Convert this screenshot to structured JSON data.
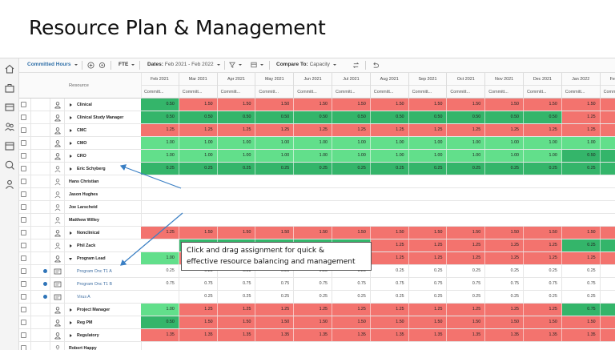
{
  "page_title": "Resource Plan & Management",
  "toolbar": {
    "measure": "Committed Hours",
    "unit": "FTE",
    "dates_label": "Dates:",
    "dates_value": "Feb 2021 - Feb 2022",
    "compare_label": "Compare To:",
    "compare_value": "Capacity"
  },
  "grid": {
    "resource_header": "Resource",
    "sub_header": "Committ...",
    "months": [
      "Feb 2021",
      "Mar 2021",
      "Apr 2021",
      "May 2021",
      "Jun 2021",
      "Jul 2021",
      "Aug 2021",
      "Sep 2021",
      "Oct 2021",
      "Nov 2021",
      "Dec 2021",
      "Jan 2022",
      "Feb 2022"
    ],
    "rows": [
      {
        "name": "Clinical",
        "kind": "group",
        "icon": "users-icon",
        "expand": "collapsed",
        "cells": [
          "0.50",
          "1.50",
          "1.50",
          "1.50",
          "1.50",
          "1.50",
          "1.50",
          "1.50",
          "1.50",
          "1.50",
          "1.50",
          "1.50",
          "1.50"
        ],
        "colors": [
          "dg",
          "red",
          "red",
          "red",
          "red",
          "red",
          "red",
          "red",
          "red",
          "red",
          "red",
          "red",
          "red"
        ]
      },
      {
        "name": "Clinical Study Manager",
        "kind": "group",
        "icon": "users-icon",
        "expand": "collapsed",
        "cells": [
          "0.50",
          "0.50",
          "0.50",
          "0.50",
          "0.50",
          "0.50",
          "0.50",
          "0.50",
          "0.50",
          "0.50",
          "0.50",
          "1.25",
          "1.25"
        ],
        "colors": [
          "dg",
          "dg",
          "dg",
          "dg",
          "dg",
          "dg",
          "dg",
          "dg",
          "dg",
          "dg",
          "dg",
          "red",
          "red"
        ]
      },
      {
        "name": "CMC",
        "kind": "group",
        "icon": "users-icon",
        "expand": "collapsed",
        "cells": [
          "1.25",
          "1.25",
          "1.25",
          "1.25",
          "1.25",
          "1.25",
          "1.25",
          "1.25",
          "1.25",
          "1.25",
          "1.25",
          "1.25",
          "1.25"
        ],
        "colors": [
          "red",
          "red",
          "red",
          "red",
          "red",
          "red",
          "red",
          "red",
          "red",
          "red",
          "red",
          "red",
          "red"
        ]
      },
      {
        "name": "CMO",
        "kind": "group",
        "icon": "users-icon",
        "expand": "collapsed",
        "cells": [
          "1.00",
          "1.00",
          "1.00",
          "1.00",
          "1.00",
          "1.00",
          "1.00",
          "1.00",
          "1.00",
          "1.00",
          "1.00",
          "1.00",
          "1.00"
        ],
        "colors": [
          "lg",
          "lg",
          "lg",
          "lg",
          "lg",
          "lg",
          "lg",
          "lg",
          "lg",
          "lg",
          "lg",
          "lg",
          "lg"
        ]
      },
      {
        "name": "CRO",
        "kind": "group",
        "icon": "users-icon",
        "expand": "collapsed",
        "cells": [
          "1.00",
          "1.00",
          "1.00",
          "1.00",
          "1.00",
          "1.00",
          "1.00",
          "1.00",
          "1.00",
          "1.00",
          "1.00",
          "0.50",
          "0.50"
        ],
        "colors": [
          "lg",
          "lg",
          "lg",
          "lg",
          "lg",
          "lg",
          "lg",
          "lg",
          "lg",
          "lg",
          "lg",
          "dg",
          "dg"
        ]
      },
      {
        "name": "Eric Schyberg",
        "kind": "group",
        "icon": "user-icon",
        "expand": "collapsed",
        "cells": [
          "0.25",
          "0.25",
          "0.25",
          "0.25",
          "0.25",
          "0.25",
          "0.25",
          "0.25",
          "0.25",
          "0.25",
          "0.25",
          "0.25",
          "0.25"
        ],
        "colors": [
          "dg",
          "dg",
          "dg",
          "dg",
          "dg",
          "dg",
          "dg",
          "dg",
          "dg",
          "dg",
          "dg",
          "dg",
          "dg"
        ]
      },
      {
        "name": "Hans Christian",
        "kind": "person",
        "icon": "user-icon",
        "expand": "none",
        "cells": [],
        "colors": []
      },
      {
        "name": "Jason Hughes",
        "kind": "person",
        "icon": "user-icon",
        "expand": "none",
        "cells": [],
        "colors": []
      },
      {
        "name": "Joe Larscheid",
        "kind": "person",
        "icon": "user-icon",
        "expand": "none",
        "cells": [],
        "colors": []
      },
      {
        "name": "Matthew Willey",
        "kind": "person",
        "icon": "user-icon",
        "expand": "none",
        "cells": [],
        "colors": []
      },
      {
        "name": "Nonclinical",
        "kind": "group",
        "icon": "users-icon",
        "expand": "collapsed",
        "cells": [
          "1.25",
          "1.50",
          "1.50",
          "1.50",
          "1.50",
          "1.50",
          "1.50",
          "1.50",
          "1.50",
          "1.50",
          "1.50",
          "1.50",
          "1.50"
        ],
        "colors": [
          "red",
          "red",
          "red",
          "red",
          "red",
          "red",
          "red",
          "red",
          "red",
          "red",
          "red",
          "red",
          "red"
        ]
      },
      {
        "name": "Phil Zack",
        "kind": "group",
        "icon": "user-icon",
        "expand": "collapsed",
        "cells": [
          "",
          "0.25",
          "0.25",
          "0.25",
          "0.25",
          "0.25",
          "1.25",
          "1.25",
          "1.25",
          "1.25",
          "1.25",
          "0.25",
          "0.25"
        ],
        "colors": [
          "w",
          "dg",
          "dg",
          "dg",
          "dg",
          "dg",
          "red",
          "red",
          "red",
          "red",
          "red",
          "dg",
          "dg"
        ]
      },
      {
        "name": "Program Lead",
        "kind": "group",
        "icon": "users-icon",
        "expand": "expanded",
        "cells": [
          "1.00",
          "1.25",
          "1.25",
          "1.25",
          "1.25",
          "1.25",
          "1.25",
          "1.25",
          "1.25",
          "1.25",
          "1.25",
          "1.25",
          "1.25"
        ],
        "colors": [
          "lg",
          "red",
          "red",
          "red",
          "red",
          "red",
          "red",
          "red",
          "red",
          "red",
          "red",
          "red",
          "red"
        ]
      },
      {
        "name": "Program Onc T1 A",
        "kind": "assignment",
        "icon": "card-icon",
        "expand": "none",
        "cells": [
          "0.25",
          "0.25",
          "0.25",
          "0.25",
          "0.25",
          "0.25",
          "0.25",
          "0.25",
          "0.25",
          "0.25",
          "0.25",
          "0.25",
          "0.25"
        ],
        "colors": [
          "w",
          "w",
          "w",
          "w",
          "w",
          "w",
          "w",
          "w",
          "w",
          "w",
          "w",
          "w",
          "w"
        ]
      },
      {
        "name": "Program Onc T1 B",
        "kind": "assignment",
        "icon": "card-icon",
        "expand": "none",
        "cells": [
          "0.75",
          "0.75",
          "0.75",
          "0.75",
          "0.75",
          "0.75",
          "0.75",
          "0.75",
          "0.75",
          "0.75",
          "0.75",
          "0.75",
          "0.75"
        ],
        "colors": [
          "w",
          "w",
          "w",
          "w",
          "w",
          "w",
          "w",
          "w",
          "w",
          "w",
          "w",
          "w",
          "w"
        ]
      },
      {
        "name": "Virus A",
        "kind": "assignment",
        "icon": "card-icon",
        "expand": "none",
        "cells": [
          "",
          "0.25",
          "0.25",
          "0.25",
          "0.25",
          "0.25",
          "0.25",
          "0.25",
          "0.25",
          "0.25",
          "0.25",
          "0.25",
          "0.25"
        ],
        "colors": [
          "w",
          "w",
          "w",
          "w",
          "w",
          "w",
          "w",
          "w",
          "w",
          "w",
          "w",
          "w",
          "w"
        ]
      },
      {
        "name": "Project Manager",
        "kind": "group",
        "icon": "users-icon",
        "expand": "collapsed",
        "cells": [
          "1.00",
          "1.25",
          "1.25",
          "1.25",
          "1.25",
          "1.25",
          "1.25",
          "1.25",
          "1.25",
          "1.25",
          "1.25",
          "0.75",
          "0.75"
        ],
        "colors": [
          "lg",
          "red",
          "red",
          "red",
          "red",
          "red",
          "red",
          "red",
          "red",
          "red",
          "red",
          "dg",
          "dg"
        ]
      },
      {
        "name": "Reg PM",
        "kind": "group",
        "icon": "users-icon",
        "expand": "collapsed",
        "cells": [
          "0.50",
          "1.50",
          "1.50",
          "1.50",
          "1.50",
          "1.50",
          "1.50",
          "1.50",
          "1.50",
          "1.50",
          "1.50",
          "1.50",
          "1.50"
        ],
        "colors": [
          "dg",
          "red",
          "red",
          "red",
          "red",
          "red",
          "red",
          "red",
          "red",
          "red",
          "red",
          "red",
          "red"
        ]
      },
      {
        "name": "Regulatory",
        "kind": "group",
        "icon": "users-icon",
        "expand": "collapsed",
        "cells": [
          "1.35",
          "1.35",
          "1.35",
          "1.35",
          "1.35",
          "1.35",
          "1.35",
          "1.35",
          "1.35",
          "1.35",
          "1.35",
          "1.35",
          "1.35"
        ],
        "colors": [
          "red",
          "red",
          "red",
          "red",
          "red",
          "red",
          "red",
          "red",
          "red",
          "red",
          "red",
          "red",
          "red"
        ]
      },
      {
        "name": "Robert Happy",
        "kind": "person",
        "icon": "user-icon",
        "expand": "none",
        "cells": [],
        "colors": []
      }
    ]
  },
  "callout": {
    "line1": "Click and drag assignment for quick &",
    "line2": "effective resource balancing and management"
  },
  "colors": {
    "red": "#f3736e",
    "light_green": "#62df8b",
    "dark_green": "#34b56a",
    "accent": "#2e74b8"
  }
}
